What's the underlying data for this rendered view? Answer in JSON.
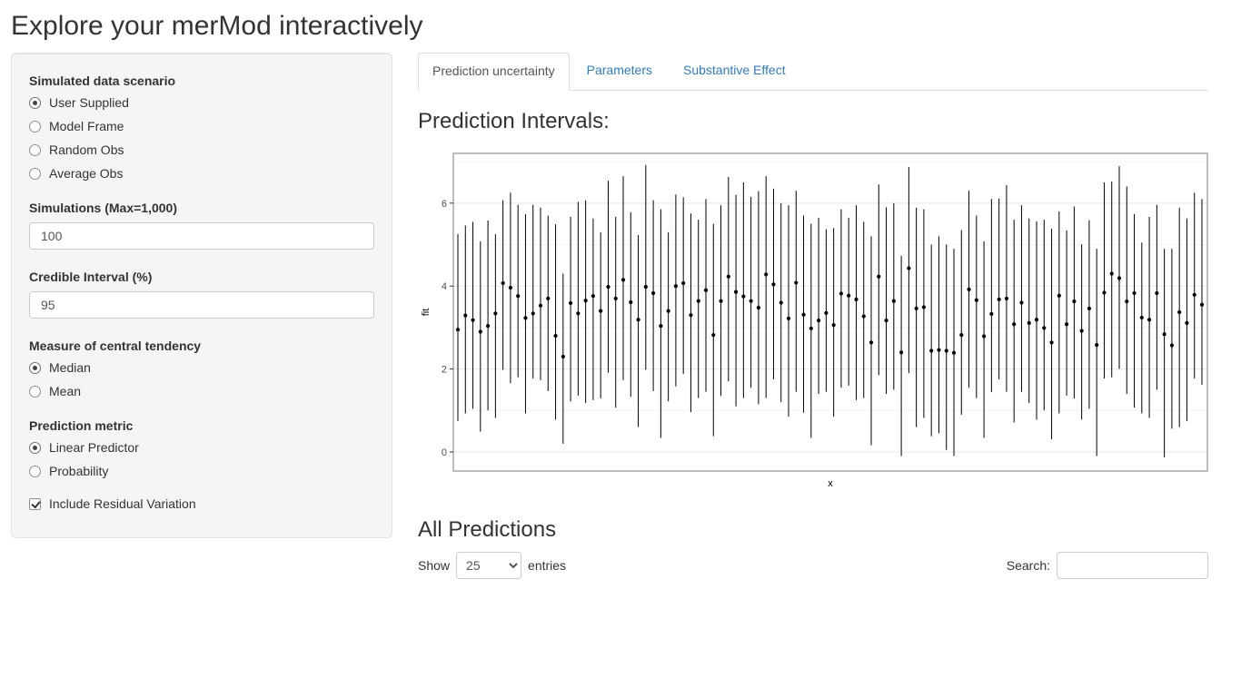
{
  "title": "Explore your merMod interactively",
  "colors": {
    "accent": "#337ab7",
    "heading": "#333333",
    "well-bg": "#f5f5f5",
    "well-border": "#e3e3e3",
    "ctl-border": "#cccccc",
    "tab-border": "#dddddd"
  },
  "sidebar": {
    "scenario": {
      "label": "Simulated data scenario",
      "options": [
        {
          "label": "User Supplied",
          "checked": true
        },
        {
          "label": "Model Frame",
          "checked": false
        },
        {
          "label": "Random Obs",
          "checked": false
        },
        {
          "label": "Average Obs",
          "checked": false
        }
      ]
    },
    "simulations": {
      "label": "Simulations (Max=1,000)",
      "value": "100"
    },
    "credible_interval": {
      "label": "Credible Interval (%)",
      "value": "95"
    },
    "tendency": {
      "label": "Measure of central tendency",
      "options": [
        {
          "label": "Median",
          "checked": true
        },
        {
          "label": "Mean",
          "checked": false
        }
      ]
    },
    "metric": {
      "label": "Prediction metric",
      "options": [
        {
          "label": "Linear Predictor",
          "checked": true
        },
        {
          "label": "Probability",
          "checked": false
        }
      ]
    },
    "residual": {
      "label": "Include Residual Variation",
      "checked": true
    }
  },
  "tabs": [
    {
      "label": "Prediction uncertainty",
      "active": true
    },
    {
      "label": "Parameters",
      "active": false
    },
    {
      "label": "Substantive Effect",
      "active": false
    }
  ],
  "main": {
    "plot_title": "Prediction Intervals:",
    "table_title": "All Predictions",
    "table_controls": {
      "show_label": "Show",
      "entries_value": "25",
      "entries_label": "entries",
      "search_label": "Search:",
      "search_value": ""
    }
  },
  "chart_data": {
    "type": "pointrange",
    "title": "Prediction Intervals:",
    "xlabel": "x",
    "ylabel": "fit",
    "ylim": [
      -0.46,
      7.2
    ],
    "yticks": [
      0,
      2,
      4,
      6
    ],
    "yticks_minor": [
      1,
      3,
      5,
      7
    ],
    "grid": true,
    "n_points": 100,
    "points_format": [
      "lower",
      "fit",
      "upper"
    ],
    "points": [
      [
        0.75,
        2.95,
        5.25
      ],
      [
        0.93,
        3.29,
        5.46
      ],
      [
        1.04,
        3.18,
        5.55
      ],
      [
        0.49,
        2.9,
        5.08
      ],
      [
        1.0,
        3.04,
        5.58
      ],
      [
        0.82,
        3.34,
        5.25
      ],
      [
        1.98,
        4.07,
        6.07
      ],
      [
        1.66,
        3.96,
        6.25
      ],
      [
        1.8,
        3.76,
        5.96
      ],
      [
        0.93,
        3.23,
        5.73
      ],
      [
        1.77,
        3.34,
        5.96
      ],
      [
        1.73,
        3.53,
        5.89
      ],
      [
        1.47,
        3.7,
        5.7
      ],
      [
        0.78,
        2.8,
        5.49
      ],
      [
        0.2,
        2.3,
        4.3
      ],
      [
        1.22,
        3.59,
        5.67
      ],
      [
        1.36,
        3.34,
        6.03
      ],
      [
        1.18,
        3.65,
        6.07
      ],
      [
        1.25,
        3.76,
        5.63
      ],
      [
        1.29,
        3.4,
        5.3
      ],
      [
        1.91,
        3.98,
        6.54
      ],
      [
        1.07,
        3.7,
        5.67
      ],
      [
        1.73,
        4.15,
        6.65
      ],
      [
        1.33,
        3.61,
        5.78
      ],
      [
        0.6,
        3.19,
        5.23
      ],
      [
        1.98,
        3.98,
        6.92
      ],
      [
        1.47,
        3.83,
        6.07
      ],
      [
        0.34,
        3.04,
        5.85
      ],
      [
        1.22,
        3.4,
        5.3
      ],
      [
        1.58,
        4.0,
        6.21
      ],
      [
        1.88,
        4.07,
        6.14
      ],
      [
        0.96,
        3.3,
        5.75
      ],
      [
        1.3,
        3.64,
        5.6
      ],
      [
        1.45,
        3.9,
        6.1
      ],
      [
        0.38,
        2.82,
        5.5
      ],
      [
        1.35,
        3.64,
        5.95
      ],
      [
        1.7,
        4.23,
        6.63
      ],
      [
        1.1,
        3.86,
        6.2
      ],
      [
        1.3,
        3.75,
        6.5
      ],
      [
        1.55,
        3.64,
        6.15
      ],
      [
        1.15,
        3.48,
        6.29
      ],
      [
        1.3,
        4.28,
        6.65
      ],
      [
        1.75,
        4.04,
        6.35
      ],
      [
        1.2,
        3.6,
        6.0
      ],
      [
        0.85,
        3.22,
        5.95
      ],
      [
        1.45,
        4.08,
        6.3
      ],
      [
        0.95,
        3.31,
        5.7
      ],
      [
        0.34,
        2.98,
        5.5
      ],
      [
        1.4,
        3.17,
        5.65
      ],
      [
        1.45,
        3.35,
        5.37
      ],
      [
        0.85,
        3.06,
        5.4
      ],
      [
        1.55,
        3.82,
        5.85
      ],
      [
        1.6,
        3.77,
        5.65
      ],
      [
        1.25,
        3.68,
        5.95
      ],
      [
        1.3,
        3.27,
        5.55
      ],
      [
        0.16,
        2.64,
        5.2
      ],
      [
        1.85,
        4.23,
        6.45
      ],
      [
        1.4,
        3.17,
        5.9
      ],
      [
        1.5,
        3.64,
        6.0
      ],
      [
        -0.1,
        2.4,
        4.73
      ],
      [
        1.9,
        4.43,
        6.87
      ],
      [
        0.6,
        3.46,
        5.89
      ],
      [
        0.82,
        3.49,
        5.85
      ],
      [
        0.38,
        2.44,
        5.0
      ],
      [
        0.45,
        2.46,
        5.2
      ],
      [
        0.05,
        2.44,
        5.0
      ],
      [
        -0.1,
        2.39,
        4.9
      ],
      [
        0.9,
        2.82,
        5.35
      ],
      [
        1.55,
        3.92,
        6.3
      ],
      [
        1.3,
        3.66,
        5.7
      ],
      [
        0.34,
        2.79,
        5.08
      ],
      [
        1.44,
        3.33,
        6.1
      ],
      [
        1.75,
        3.68,
        6.11
      ],
      [
        1.45,
        3.7,
        6.43
      ],
      [
        0.71,
        3.08,
        5.6
      ],
      [
        1.45,
        3.6,
        5.95
      ],
      [
        1.18,
        3.11,
        5.63
      ],
      [
        0.78,
        3.19,
        5.56
      ],
      [
        1.0,
        2.99,
        5.6
      ],
      [
        0.31,
        2.64,
        5.38
      ],
      [
        0.93,
        3.77,
        5.8
      ],
      [
        1.36,
        3.08,
        5.34
      ],
      [
        1.29,
        3.63,
        5.92
      ],
      [
        0.78,
        2.92,
        5.01
      ],
      [
        1.04,
        3.46,
        5.59
      ],
      [
        -0.1,
        2.58,
        4.9
      ],
      [
        1.77,
        3.84,
        6.5
      ],
      [
        1.8,
        4.3,
        6.52
      ],
      [
        2.0,
        4.19,
        6.89
      ],
      [
        1.4,
        3.63,
        6.4
      ],
      [
        1.07,
        3.83,
        5.74
      ],
      [
        0.93,
        3.24,
        5.05
      ],
      [
        0.82,
        3.19,
        5.67
      ],
      [
        1.5,
        3.83,
        5.96
      ],
      [
        -0.13,
        2.84,
        4.9
      ],
      [
        0.56,
        2.57,
        4.9
      ],
      [
        0.6,
        3.37,
        5.89
      ],
      [
        0.74,
        3.11,
        5.63
      ],
      [
        1.77,
        3.79,
        6.25
      ],
      [
        1.62,
        3.55,
        6.1
      ]
    ]
  }
}
